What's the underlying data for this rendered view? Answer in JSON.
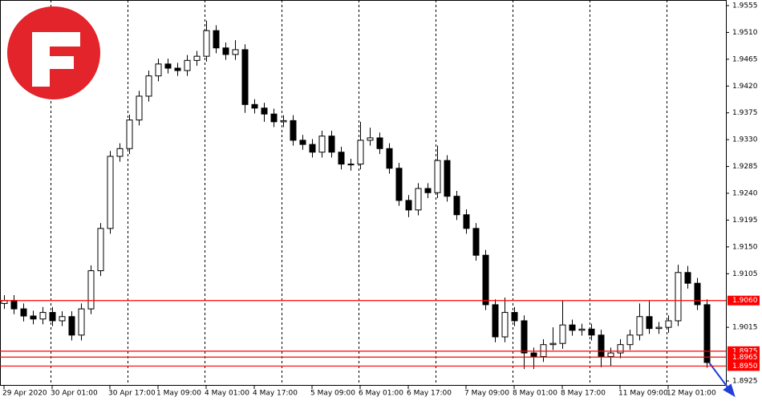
{
  "chart_data": {
    "type": "candlestick",
    "ylim": [
      1.8925,
      1.9555
    ],
    "yticks": [
      1.9555,
      {
        "value": 1.951,
        "label": "1.9510"
      },
      1.9465,
      {
        "value": 1.942,
        "label": "1.9420"
      },
      1.9375,
      {
        "value": 1.933,
        "label": "1.9330"
      },
      1.9285,
      {
        "value": 1.924,
        "label": "1.9240"
      },
      1.9195,
      {
        "value": 1.915,
        "label": "1.9150"
      },
      1.9105,
      1.9015,
      1.8925
    ],
    "levels": [
      {
        "value": 1.906,
        "label": "1.9060"
      },
      1.8975,
      1.8965,
      {
        "value": 1.895,
        "label": "1.8950"
      }
    ],
    "level_color": "#ff0000",
    "categories": [
      "29 Apr 2020",
      null,
      null,
      null,
      null,
      "30 Apr 01:00",
      null,
      null,
      null,
      null,
      null,
      "30 Apr 17:00",
      null,
      null,
      null,
      null,
      "1 May 09:00",
      null,
      null,
      null,
      null,
      "4 May 01:00",
      null,
      null,
      null,
      null,
      "4 May 17:00",
      null,
      null,
      null,
      null,
      null,
      "5 May 09:00",
      null,
      null,
      null,
      null,
      "6 May 01:00",
      null,
      null,
      null,
      null,
      "6 May 17:00",
      null,
      null,
      null,
      null,
      null,
      "7 May 09:00",
      null,
      null,
      null,
      null,
      "8 May 01:00",
      null,
      null,
      null,
      null,
      "8 May 17:00",
      null,
      null,
      null,
      null,
      null,
      "11 May 09:00",
      null,
      null,
      null,
      null,
      "12 May 01:00",
      null,
      null,
      null,
      null
    ],
    "candles": [
      [
        1.9055,
        1.9069,
        1.9046,
        1.906
      ],
      [
        1.906,
        1.9069,
        1.9037,
        1.9046
      ],
      [
        1.9046,
        1.9055,
        1.9025,
        1.9034
      ],
      [
        1.9034,
        1.9043,
        1.902,
        1.9029
      ],
      [
        1.9029,
        1.9049,
        1.902,
        1.904
      ],
      [
        1.904,
        1.9049,
        1.9017,
        1.9026
      ],
      [
        1.9026,
        1.9042,
        1.9017,
        1.9033
      ],
      [
        1.9033,
        1.9042,
        1.8993,
        1.9002
      ],
      [
        1.9002,
        1.9055,
        1.8993,
        1.9046
      ],
      [
        1.9046,
        1.9119,
        1.9037,
        1.911
      ],
      [
        1.911,
        1.919,
        1.9101,
        1.9181
      ],
      [
        1.9181,
        1.9311,
        1.9172,
        1.9302
      ],
      [
        1.9302,
        1.9324,
        1.9293,
        1.9315
      ],
      [
        1.9315,
        1.9372,
        1.9306,
        1.9363
      ],
      [
        1.9363,
        1.9412,
        1.9354,
        1.9403
      ],
      [
        1.9403,
        1.9446,
        1.9394,
        1.9437
      ],
      [
        1.9437,
        1.9466,
        1.9428,
        1.9457
      ],
      [
        1.9457,
        1.9466,
        1.9441,
        1.945
      ],
      [
        1.945,
        1.9459,
        1.9437,
        1.9446
      ],
      [
        1.9446,
        1.9472,
        1.9437,
        1.9463
      ],
      [
        1.9463,
        1.9479,
        1.9454,
        1.947
      ],
      [
        1.947,
        1.953,
        1.9461,
        1.9513
      ],
      [
        1.9513,
        1.9522,
        1.9475,
        1.9484
      ],
      [
        1.9484,
        1.9493,
        1.9464,
        1.9473
      ],
      [
        1.9473,
        1.9497,
        1.9464,
        1.9481
      ],
      [
        1.9481,
        1.949,
        1.9375,
        1.9389
      ],
      [
        1.9389,
        1.9398,
        1.9374,
        1.9383
      ],
      [
        1.9383,
        1.9392,
        1.936,
        1.9373
      ],
      [
        1.9373,
        1.9382,
        1.9351,
        1.936
      ],
      [
        1.936,
        1.9371,
        1.9351,
        1.9362
      ],
      [
        1.9362,
        1.9371,
        1.932,
        1.9329
      ],
      [
        1.9329,
        1.9338,
        1.9313,
        1.9322
      ],
      [
        1.9322,
        1.9331,
        1.93,
        1.9309
      ],
      [
        1.9309,
        1.9345,
        1.93,
        1.9336
      ],
      [
        1.9336,
        1.9345,
        1.93,
        1.9309
      ],
      [
        1.9309,
        1.9318,
        1.928,
        1.9289
      ],
      [
        1.9289,
        1.9298,
        1.9278,
        1.9289
      ],
      [
        1.9289,
        1.936,
        1.928,
        1.9329
      ],
      [
        1.9329,
        1.935,
        1.932,
        1.9333
      ],
      [
        1.9333,
        1.9342,
        1.9306,
        1.9315
      ],
      [
        1.9315,
        1.9324,
        1.9273,
        1.9282
      ],
      [
        1.9282,
        1.9291,
        1.9219,
        1.9228
      ],
      [
        1.9228,
        1.9237,
        1.92,
        1.9212
      ],
      [
        1.9212,
        1.9257,
        1.9203,
        1.9248
      ],
      [
        1.9248,
        1.9257,
        1.9232,
        1.9241
      ],
      [
        1.9241,
        1.932,
        1.9232,
        1.9295
      ],
      [
        1.9295,
        1.9304,
        1.9226,
        1.9235
      ],
      [
        1.9235,
        1.9244,
        1.9195,
        1.9204
      ],
      [
        1.9204,
        1.9213,
        1.9172,
        1.9181
      ],
      [
        1.9181,
        1.919,
        1.9127,
        1.9136
      ],
      [
        1.9136,
        1.9145,
        1.9044,
        1.9053
      ],
      [
        1.9053,
        1.9062,
        1.899,
        1.8999
      ],
      [
        1.8999,
        1.9065,
        1.899,
        1.904
      ],
      [
        1.904,
        1.9049,
        1.9017,
        1.9026
      ],
      [
        1.9026,
        1.9035,
        1.8945,
        1.8972
      ],
      [
        1.8972,
        1.8981,
        1.8945,
        1.8966
      ],
      [
        1.8966,
        1.8995,
        1.8957,
        1.8986
      ],
      [
        1.8986,
        1.9015,
        1.8977,
        1.8988
      ],
      [
        1.8988,
        1.906,
        1.8979,
        1.9019
      ],
      [
        1.9019,
        1.9028,
        1.9001,
        1.901
      ],
      [
        1.901,
        1.9021,
        1.9001,
        1.9012
      ],
      [
        1.9012,
        1.9021,
        1.8993,
        1.9002
      ],
      [
        1.9002,
        1.9011,
        1.8948,
        1.8966
      ],
      [
        1.8966,
        1.8981,
        1.895,
        1.8972
      ],
      [
        1.8972,
        1.8995,
        1.8963,
        1.8986
      ],
      [
        1.8986,
        1.9011,
        1.8977,
        1.9002
      ],
      [
        1.9002,
        1.9055,
        1.8993,
        1.9033
      ],
      [
        1.9033,
        1.906,
        1.9004,
        1.9013
      ],
      [
        1.9013,
        1.9024,
        1.9004,
        1.9015
      ],
      [
        1.9015,
        1.9035,
        1.9006,
        1.9026
      ],
      [
        1.9026,
        1.912,
        1.9017,
        1.9107
      ],
      [
        1.9107,
        1.9118,
        1.908,
        1.9089
      ],
      [
        1.9089,
        1.9098,
        1.9044,
        1.9053
      ],
      [
        1.9053,
        1.9062,
        1.8947,
        1.8956
      ]
    ]
  }
}
